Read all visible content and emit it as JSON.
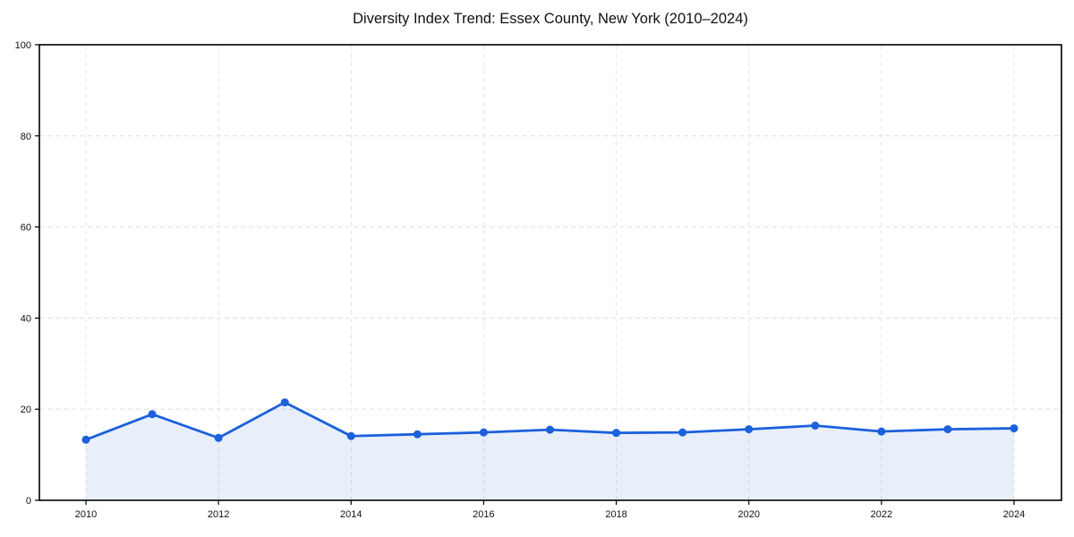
{
  "chart_data": {
    "type": "area",
    "title": "Diversity Index Trend: Essex County, New York (2010–2024)",
    "xlabel": "",
    "ylabel": "",
    "x": [
      2010,
      2011,
      2012,
      2013,
      2014,
      2015,
      2016,
      2017,
      2018,
      2019,
      2020,
      2021,
      2022,
      2023,
      2024
    ],
    "series": [
      {
        "name": "Diversity Index",
        "values": [
          13.3,
          18.9,
          13.7,
          21.5,
          14.1,
          14.5,
          14.9,
          15.5,
          14.8,
          14.9,
          15.6,
          16.4,
          15.1,
          15.6,
          15.8
        ]
      }
    ],
    "xlim": [
      2009.3,
      2024.7
    ],
    "ylim": [
      0,
      100
    ],
    "xticks": [
      2010,
      2012,
      2014,
      2016,
      2018,
      2020,
      2022,
      2024
    ],
    "yticks": [
      0,
      20,
      40,
      60,
      80,
      100
    ],
    "grid": true,
    "grid_style": "dashed",
    "legend": false,
    "colors": {
      "line": "#1c60dc",
      "marker": "#1c60dc",
      "fill": "rgba(28, 96, 220, 0.10)",
      "h_grid": "#dedede",
      "v_grid": "#e4e4e4",
      "axis": "#000000",
      "tick_text": "#111111",
      "background": "#ffffff"
    }
  }
}
